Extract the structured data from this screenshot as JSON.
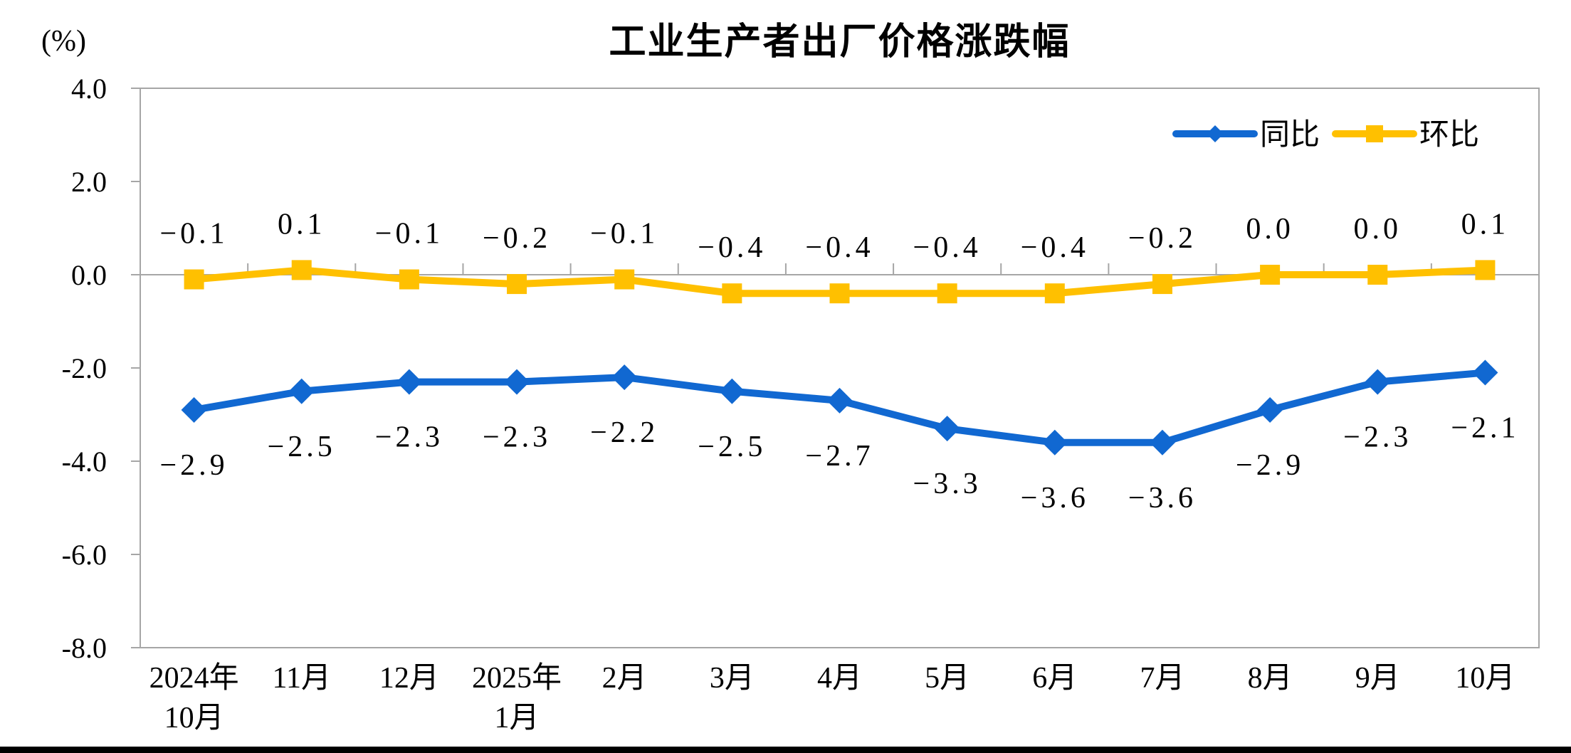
{
  "chart_data": {
    "type": "line",
    "title": "工业生产者出厂价格涨跌幅",
    "unit_label": "(%)",
    "categories": [
      "2024年\n10月",
      "11月",
      "12月",
      "2025年\n1月",
      "2月",
      "3月",
      "4月",
      "5月",
      "6月",
      "7月",
      "8月",
      "9月",
      "10月"
    ],
    "series": [
      {
        "name": "同比",
        "color": "#1168D1",
        "marker": "diamond",
        "label_position": "below",
        "values": [
          -2.9,
          -2.5,
          -2.3,
          -2.3,
          -2.2,
          -2.5,
          -2.7,
          -3.3,
          -3.6,
          -3.6,
          -2.9,
          -2.3,
          -2.1
        ]
      },
      {
        "name": "环比",
        "color": "#FFC000",
        "marker": "square",
        "label_position": "above",
        "values": [
          -0.1,
          0.1,
          -0.1,
          -0.2,
          -0.1,
          -0.4,
          -0.4,
          -0.4,
          -0.4,
          -0.2,
          0.0,
          0.0,
          0.1
        ]
      }
    ],
    "ylim": [
      -8.0,
      4.0
    ],
    "ytick_step": 2.0,
    "ytick_labels": [
      "4.0",
      "2.0",
      "0.0",
      "-2.0",
      "-4.0",
      "-6.0",
      "-8.0"
    ],
    "grid": false,
    "legend_position": "top-right-inside",
    "axis_color": "#A6A6A6",
    "label_color": "#000000"
  }
}
